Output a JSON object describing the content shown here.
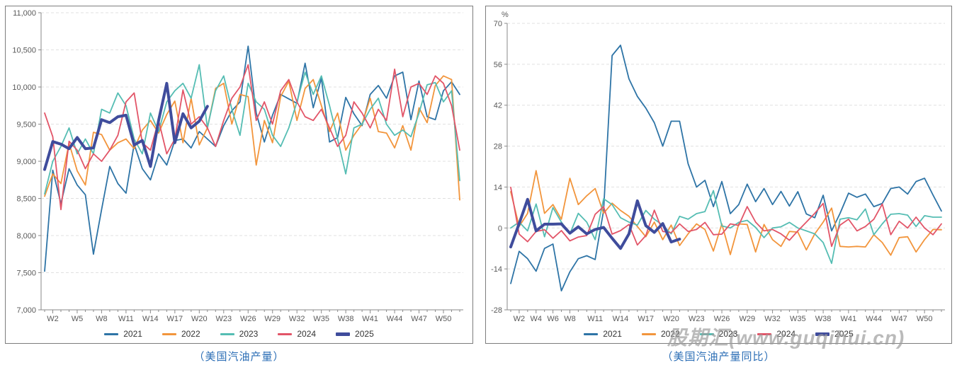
{
  "watermark": "股期汇(www.guqihui.cn)",
  "colors": {
    "series_2021": "#2E74A6",
    "series_2022": "#F2953C",
    "series_2023": "#55BDB3",
    "series_2024": "#E25568",
    "series_2025": "#3F4C9C",
    "caption_text": "#2A6DB5",
    "axis_text": "#595959",
    "gridline": "#E0E0E0",
    "panel_border": "#7D7D7D",
    "watermark_text": "#9D9D9D"
  },
  "panels": [
    {
      "caption": "（美国汽油产量）"
    },
    {
      "caption": "（美国汽油产量同比）"
    }
  ],
  "chart_data": [
    {
      "type": "line",
      "title": "（美国汽油产量）",
      "xlabel": "",
      "ylabel": "",
      "x_unit": "week-of-year",
      "x_range": [
        1,
        52
      ],
      "x_tick_labels": [
        "W2",
        "W5",
        "W8",
        "W11",
        "W14",
        "W17",
        "W20",
        "W23",
        "W26",
        "W29",
        "W32",
        "W35",
        "W38",
        "W41",
        "W44",
        "W47",
        "W50"
      ],
      "ylim": [
        7000,
        11000
      ],
      "y_ticks": [
        7000,
        7500,
        8000,
        8500,
        9000,
        9500,
        10000,
        10500,
        11000
      ],
      "y_format": "comma",
      "grid": "horizontal-dashed",
      "legend_position": "bottom",
      "series": [
        {
          "name": "2021",
          "color": "#2E74A6",
          "line_width": 1.8,
          "values": [
            7520,
            8880,
            8430,
            8900,
            8680,
            8550,
            7750,
            8350,
            8930,
            8700,
            8570,
            9230,
            8900,
            8750,
            9100,
            8950,
            9280,
            9300,
            9180,
            9400,
            9300,
            9200,
            9480,
            9680,
            9800,
            10550,
            9650,
            9260,
            9620,
            9900,
            9840,
            9780,
            10320,
            9720,
            10120,
            9260,
            9320,
            9860,
            9640,
            9480,
            9900,
            10020,
            9850,
            10150,
            10200,
            9560,
            10080,
            9600,
            9560,
            9950,
            10070,
            9900
          ]
        },
        {
          "name": "2022",
          "color": "#F2953C",
          "line_width": 1.8,
          "values": [
            8530,
            8830,
            8700,
            9245,
            8870,
            8680,
            9390,
            9360,
            9150,
            9250,
            9300,
            9170,
            9420,
            9550,
            9380,
            9630,
            9810,
            9250,
            9850,
            9220,
            9450,
            9980,
            10050,
            9500,
            9900,
            9870,
            8950,
            9550,
            9250,
            9870,
            10080,
            9550,
            9980,
            10100,
            9750,
            9400,
            9650,
            9150,
            9350,
            9500,
            9850,
            9400,
            9380,
            9180,
            9480,
            9150,
            9720,
            9520,
            10020,
            10150,
            10100,
            8480
          ]
        },
        {
          "name": "2023",
          "color": "#55BDB3",
          "line_width": 1.8,
          "values": [
            8560,
            9000,
            9200,
            9450,
            9100,
            9300,
            9100,
            9700,
            9650,
            9920,
            9750,
            9300,
            9100,
            9650,
            9400,
            9800,
            9950,
            10050,
            9850,
            10300,
            9450,
            9950,
            10150,
            9700,
            9350,
            10050,
            9800,
            9700,
            9350,
            9200,
            9450,
            9800,
            10200,
            9900,
            10150,
            9750,
            9300,
            8830,
            9450,
            9500,
            9700,
            9850,
            9500,
            9350,
            9420,
            9330,
            9650,
            10030,
            10060,
            9800,
            9950,
            8740
          ]
        },
        {
          "name": "2024",
          "color": "#E25568",
          "line_width": 1.8,
          "values": [
            9650,
            9330,
            8350,
            9270,
            9150,
            8900,
            9100,
            9000,
            9150,
            9350,
            9800,
            9920,
            9250,
            9150,
            9550,
            9100,
            9300,
            9960,
            9500,
            9600,
            9450,
            9200,
            9550,
            9850,
            10000,
            10300,
            9550,
            9800,
            9500,
            9950,
            10100,
            9800,
            9600,
            9550,
            9700,
            9450,
            9200,
            9350,
            9800,
            9650,
            9450,
            9700,
            9550,
            10240,
            9600,
            10000,
            10050,
            9900,
            10150,
            10050,
            9750,
            9150
          ]
        },
        {
          "name": "2025",
          "color": "#3F4C9C",
          "line_width": 4,
          "values": [
            8890,
            9265,
            9230,
            9170,
            9320,
            9170,
            9180,
            9560,
            9520,
            9600,
            9620,
            9220,
            9280,
            8930,
            9550,
            10050,
            9250,
            9640,
            9450,
            9540,
            9740
          ]
        }
      ]
    },
    {
      "type": "line",
      "title": "（美国汽油产量同比）",
      "xlabel": "",
      "ylabel": "%",
      "x_unit": "week-of-year",
      "x_range": [
        1,
        52
      ],
      "x_tick_labels": [
        "W2",
        "W4",
        "W6",
        "W8",
        "W11",
        "W14",
        "W17",
        "W20",
        "W23",
        "W26",
        "W29",
        "W32",
        "W35",
        "W38",
        "W41",
        "W44",
        "W47",
        "W50"
      ],
      "ylim": [
        -28,
        70
      ],
      "y_ticks": [
        -28,
        -14,
        0,
        14,
        28,
        42,
        56,
        70
      ],
      "y_format": "plain",
      "grid": "horizontal-dashed",
      "legend_position": "bottom",
      "series": [
        {
          "name": "2021",
          "color": "#2E74A6",
          "line_width": 1.8,
          "values": [
            -19,
            -8,
            -10.5,
            -14.8,
            -7,
            -5.5,
            -21.5,
            -15,
            -10.5,
            -9.5,
            -10.8,
            6,
            59,
            62.5,
            51,
            45,
            41,
            36,
            28,
            36.5,
            36.5,
            22,
            14,
            16.3,
            7.3,
            15.9,
            4.9,
            8,
            15,
            9,
            13.5,
            8,
            12.5,
            7.5,
            12.4,
            4.8,
            3.5,
            11.2,
            -1,
            5,
            11.9,
            10.5,
            11.6,
            7.3,
            8.4,
            13.5,
            14,
            11.6,
            15.9,
            17,
            11.3,
            5.8
          ]
        },
        {
          "name": "2022",
          "color": "#F2953C",
          "line_width": 1.8,
          "values": [
            12.4,
            0.5,
            5,
            19.6,
            5,
            8,
            3,
            17,
            8,
            11,
            13.5,
            5,
            8.5,
            6,
            4,
            0.5,
            -3,
            2,
            -4,
            1,
            -6,
            -2,
            1.4,
            -0.5,
            -7.9,
            1.4,
            -9.1,
            1.4,
            1.2,
            -8.2,
            1.2,
            -4,
            -6.3,
            -1.2,
            -1.4,
            -7.5,
            -2,
            2,
            6.8,
            -6.3,
            -6.5,
            -6.3,
            -6.5,
            -2.3,
            -5,
            -9.3,
            -3.3,
            -3,
            -8.2,
            -4,
            -0.5,
            -0.6
          ]
        },
        {
          "name": "2023",
          "color": "#55BDB3",
          "line_width": 1.8,
          "values": [
            0,
            2,
            -1,
            8.2,
            -3,
            7,
            2,
            -2,
            5,
            2,
            -4,
            10,
            8,
            3.5,
            2,
            1,
            6,
            3,
            1,
            -2,
            4,
            3,
            4.9,
            5.6,
            12.8,
            0.7,
            0,
            1.9,
            2.6,
            0.2,
            -3.3,
            0,
            0.4,
            1.9,
            0,
            -1,
            -2,
            -5,
            -12.1,
            3,
            3.5,
            2.8,
            6.5,
            -2.3,
            1.4,
            4.7,
            4.9,
            4.4,
            0.5,
            4.2,
            3.7,
            3.7
          ]
        },
        {
          "name": "2024",
          "color": "#E25568",
          "line_width": 1.8,
          "values": [
            13.9,
            -2.1,
            -4.7,
            -1.2,
            -0.6,
            -3.5,
            -0.9,
            -4.4,
            -3.1,
            -2.6,
            4.7,
            7.3,
            -2.1,
            -0.9,
            1.2,
            -5.8,
            -2.6,
            6.1,
            -1.2,
            -1.6,
            1.4,
            -1.2,
            -0.5,
            1.9,
            -2.3,
            -2.1,
            1.4,
            0.9,
            7.3,
            2,
            -1,
            -0.5,
            -2,
            -4.2,
            -1,
            2,
            5,
            8.4,
            -6.3,
            1,
            3,
            -1,
            0.5,
            3,
            8.2,
            -2.3,
            2.3,
            0,
            3.7,
            0,
            -2.3,
            1.4
          ]
        },
        {
          "name": "2025",
          "color": "#3F4C9C",
          "line_width": 4,
          "values": [
            -6.5,
            1.5,
            9.8,
            -1.0,
            1.3,
            1.3,
            1.4,
            -1.8,
            0.4,
            -2.0,
            -0.5,
            0.2,
            -3.5,
            -7.0,
            -2.0,
            9.3,
            0.8,
            -1.5,
            1.5,
            -4.8,
            -3.8
          ]
        }
      ]
    }
  ]
}
